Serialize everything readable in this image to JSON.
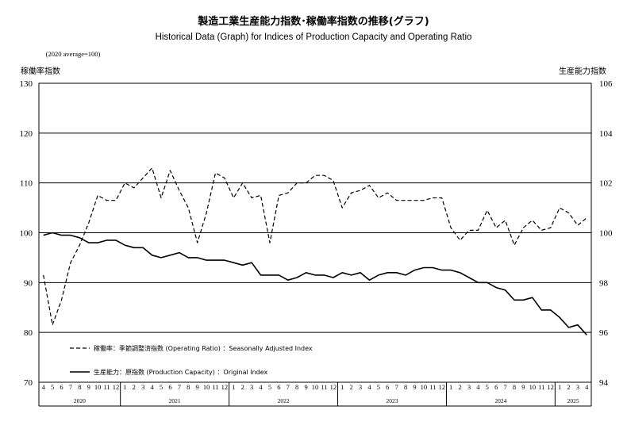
{
  "title": "製造工業生産能力指数･稼働率指数の推移(グラフ)",
  "subtitle": "Historical Data (Graph) for Indices of Production Capacity and Operating Ratio",
  "base_note": "(2020 average=100)",
  "y_left_label": "稼働率指数",
  "y_right_label": "生産能力指数",
  "legend": {
    "operating_label": "稼働率：季節調整済指数 (Operating Ratio) ：Seasonally Adjusted Index",
    "capacity_label": "生産能力：原指数 (Production Capacity) ：Original Index"
  },
  "chart_data": {
    "type": "line",
    "title": "製造工業生産能力指数･稼働率指数の推移(グラフ)",
    "x_month_labels": [
      "4",
      "5",
      "6",
      "7",
      "8",
      "9",
      "10",
      "11",
      "12",
      "1",
      "2",
      "3",
      "4",
      "5",
      "6",
      "7",
      "8",
      "9",
      "10",
      "11",
      "12",
      "1",
      "2",
      "3",
      "4",
      "5",
      "6",
      "7",
      "8",
      "9",
      "10",
      "11",
      "12",
      "1",
      "2",
      "3",
      "4",
      "5",
      "6",
      "7",
      "8",
      "9",
      "10",
      "11",
      "12",
      "1",
      "2",
      "3",
      "4",
      "5",
      "6",
      "7",
      "8",
      "9",
      "10",
      "11",
      "12",
      "1",
      "2",
      "3",
      "4"
    ],
    "year_labels": [
      {
        "label": "2020",
        "start": 0,
        "end": 8
      },
      {
        "label": "2021",
        "start": 9,
        "end": 20
      },
      {
        "label": "2022",
        "start": 21,
        "end": 32
      },
      {
        "label": "2023",
        "start": 33,
        "end": 44
      },
      {
        "label": "2024",
        "start": 45,
        "end": 56
      },
      {
        "label": "2025",
        "start": 57,
        "end": 60
      }
    ],
    "y_left": {
      "label": "稼働率指数",
      "min": 70,
      "max": 130,
      "ticks": [
        70,
        80,
        90,
        100,
        110,
        120,
        130
      ]
    },
    "y_right": {
      "label": "生産能力指数",
      "min": 94,
      "max": 106,
      "ticks": [
        94,
        96,
        98,
        100,
        102,
        104,
        106
      ]
    },
    "grid": true,
    "legend_position": "bottom-left",
    "series": [
      {
        "name": "稼働率：季節調整済指数 (Operating Ratio) ：Seasonally Adjusted Index",
        "axis": "left",
        "style": "dashed",
        "values": [
          91.5,
          81.5,
          86.5,
          94,
          97.5,
          102,
          107.5,
          106.5,
          106.5,
          110,
          109,
          111,
          113,
          107,
          112.5,
          108.5,
          105,
          98,
          104,
          112,
          111,
          107,
          110,
          107,
          107.5,
          98,
          107.5,
          108,
          110,
          110,
          111.5,
          111.5,
          110.5,
          105,
          108,
          108.5,
          109.5,
          107,
          108,
          106.5,
          106.5,
          106.5,
          106.5,
          107,
          107,
          101,
          98.5,
          100.5,
          100.5,
          104.5,
          101,
          102.5,
          97.5,
          101,
          102.5,
          100.5,
          101,
          105,
          104,
          101.5,
          103
        ]
      },
      {
        "name": "生産能力：原指数 (Production Capacity) ：Original Index",
        "axis": "right",
        "style": "solid",
        "values": [
          99.9,
          100,
          99.9,
          99.9,
          99.8,
          99.6,
          99.6,
          99.7,
          99.7,
          99.5,
          99.4,
          99.4,
          99.1,
          99.0,
          99.1,
          99.2,
          99.0,
          99.0,
          98.9,
          98.9,
          98.9,
          98.8,
          98.7,
          98.8,
          98.3,
          98.3,
          98.3,
          98.1,
          98.2,
          98.4,
          98.3,
          98.3,
          98.2,
          98.4,
          98.3,
          98.4,
          98.1,
          98.3,
          98.4,
          98.4,
          98.3,
          98.5,
          98.6,
          98.6,
          98.5,
          98.5,
          98.4,
          98.2,
          98.0,
          98.0,
          97.8,
          97.7,
          97.3,
          97.3,
          97.4,
          96.9,
          96.9,
          96.6,
          96.2,
          96.3,
          95.9
        ]
      }
    ]
  }
}
